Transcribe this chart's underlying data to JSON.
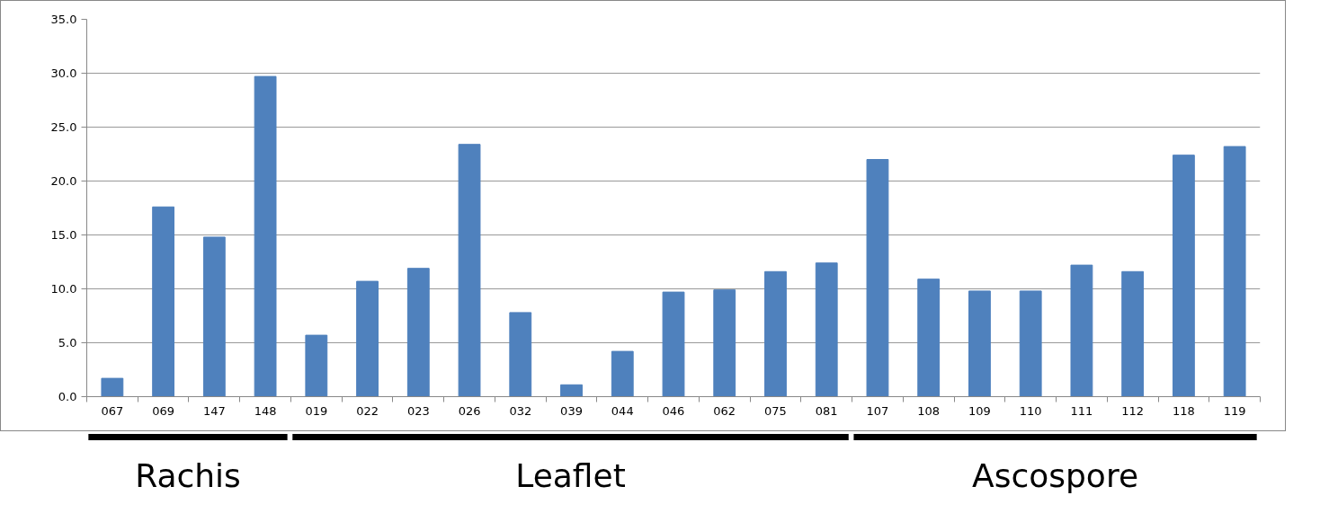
{
  "chart_data": {
    "type": "bar",
    "categories": [
      "067",
      "069",
      "147",
      "148",
      "019",
      "022",
      "023",
      "026",
      "032",
      "039",
      "044",
      "046",
      "062",
      "075",
      "081",
      "107",
      "108",
      "109",
      "110",
      "111",
      "112",
      "118",
      "119"
    ],
    "values": [
      1.7,
      17.6,
      14.8,
      29.7,
      5.7,
      10.7,
      11.9,
      23.4,
      7.8,
      1.1,
      4.2,
      9.7,
      9.9,
      11.6,
      12.4,
      22.0,
      10.9,
      9.8,
      9.8,
      12.2,
      11.6,
      22.4,
      23.2
    ],
    "color": "#4f81bd",
    "ylim": [
      0,
      35
    ],
    "yticks": [
      {
        "value": 0,
        "label": "0.0"
      },
      {
        "value": 5,
        "label": "5.0"
      },
      {
        "value": 10,
        "label": "10.0"
      },
      {
        "value": 15,
        "label": "15.0"
      },
      {
        "value": 20,
        "label": "20.0"
      },
      {
        "value": 25,
        "label": "25.0"
      },
      {
        "value": 30,
        "label": "30.0"
      },
      {
        "value": 35,
        "label": "35.0"
      }
    ],
    "grid": "y",
    "annotations": [
      "Rachis",
      "Leaflet",
      "Ascospore"
    ]
  }
}
